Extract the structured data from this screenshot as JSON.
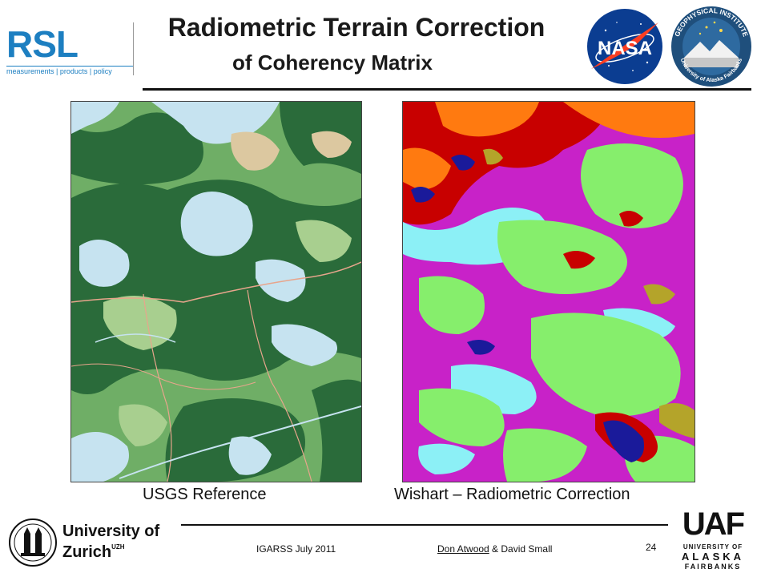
{
  "header": {
    "title_line1": "Radiometric Terrain Correction",
    "title_line2": "of Coherency Matrix",
    "rsl_logo": {
      "letters": "RSL",
      "tagline": "measurements | products | policy"
    },
    "nasa_logo": {
      "text": "NASA"
    },
    "gi_logo": {
      "top_text": "GEOPHYSICAL INSTITUTE",
      "bottom_text": "University of Alaska Fairbanks"
    }
  },
  "figures": {
    "left": {
      "caption": "USGS Reference"
    },
    "right": {
      "caption": "Wishart – Radiometric Correction"
    }
  },
  "footer": {
    "conference": "IGARSS July 2011",
    "author_link": "Don Atwood",
    "author_rest": " & David Small",
    "page_number": "24"
  },
  "logos": {
    "uzh": {
      "line1": "University of",
      "line2": "Zurich",
      "sup": "UZH"
    },
    "uaf": {
      "word": "UAF",
      "line1": "UNIVERSITY OF",
      "line2": "ALASKA",
      "line3": "FAIRBANKS"
    }
  },
  "colors": {
    "usgs_light_blue": "#c6e3f0",
    "usgs_dark_green": "#2a6b3a",
    "usgs_medium_green": "#6fae66",
    "usgs_light_green": "#a8cf8f",
    "usgs_tan": "#dcc8a0",
    "usgs_road": "#e8a58c",
    "wishart_lime": "#86ee6c",
    "wishart_magenta": "#c822c8",
    "wishart_cyan": "#8cf0f6",
    "wishart_red": "#c80000",
    "wishart_orange": "#ff7a10",
    "wishart_navy": "#1a1a9a",
    "wishart_olive": "#b4a42a",
    "rsl_blue": "#1d7fc1",
    "nasa_blue": "#0b3d91",
    "nasa_red": "#fc3d21"
  }
}
